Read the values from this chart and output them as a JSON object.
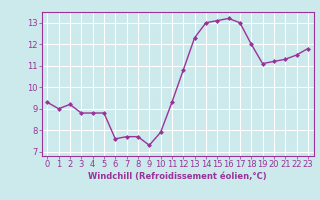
{
  "x": [
    0,
    1,
    2,
    3,
    4,
    5,
    6,
    7,
    8,
    9,
    10,
    11,
    12,
    13,
    14,
    15,
    16,
    17,
    18,
    19,
    20,
    21,
    22,
    23
  ],
  "y": [
    9.3,
    9.0,
    9.2,
    8.8,
    8.8,
    8.8,
    7.6,
    7.7,
    7.7,
    7.3,
    7.9,
    9.3,
    10.8,
    12.3,
    13.0,
    13.1,
    13.2,
    13.0,
    12.0,
    11.1,
    11.2,
    11.3,
    11.5,
    11.8
  ],
  "line_color": "#993399",
  "marker": "D",
  "marker_size": 2,
  "bg_color": "#cce9ec",
  "grid_color": "#ffffff",
  "xlabel": "Windchill (Refroidissement éolien,°C)",
  "xlabel_color": "#993399",
  "tick_color": "#993399",
  "spine_color": "#993399",
  "ylim": [
    6.8,
    13.5
  ],
  "xlim": [
    -0.5,
    23.5
  ],
  "yticks": [
    7,
    8,
    9,
    10,
    11,
    12,
    13
  ],
  "xticks": [
    0,
    1,
    2,
    3,
    4,
    5,
    6,
    7,
    8,
    9,
    10,
    11,
    12,
    13,
    14,
    15,
    16,
    17,
    18,
    19,
    20,
    21,
    22,
    23
  ],
  "xlabel_fontsize": 6,
  "tick_fontsize": 6
}
